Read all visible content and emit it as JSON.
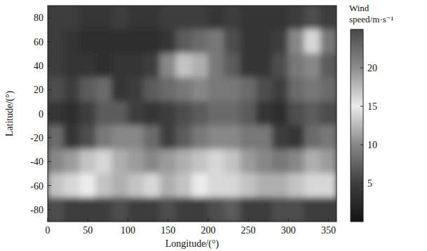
{
  "chart_data": {
    "type": "heatmap",
    "x_label": "Longitude/(°)",
    "y_label": "Latitude/(°)",
    "xlim": [
      0,
      360
    ],
    "ylim": [
      -90,
      90
    ],
    "xticks": [
      0,
      50,
      100,
      150,
      200,
      250,
      300,
      350
    ],
    "yticks": [
      -80,
      -60,
      -40,
      -20,
      0,
      20,
      40,
      60,
      80
    ],
    "x_edges": [
      0,
      20,
      40,
      60,
      80,
      100,
      120,
      140,
      160,
      180,
      200,
      220,
      240,
      260,
      280,
      300,
      320,
      340,
      360
    ],
    "y_edges": [
      90,
      70,
      50,
      30,
      10,
      -10,
      -30,
      -50,
      -70,
      -90
    ],
    "cells": [
      [
        5,
        5,
        4,
        4,
        5,
        4,
        4,
        5,
        5,
        5,
        4,
        5,
        4,
        4,
        4,
        5,
        6,
        5
      ],
      [
        5,
        4,
        3,
        3,
        3,
        3,
        3,
        4,
        7,
        8,
        9,
        6,
        4,
        4,
        5,
        10,
        14,
        9
      ],
      [
        5,
        4,
        4,
        3,
        4,
        4,
        5,
        10,
        13,
        12,
        9,
        7,
        4,
        4,
        6,
        9,
        10,
        7
      ],
      [
        6,
        5,
        7,
        8,
        4,
        5,
        7,
        8,
        9,
        10,
        9,
        9,
        8,
        6,
        5,
        8,
        9,
        8
      ],
      [
        4,
        3,
        5,
        7,
        7,
        5,
        4,
        5,
        6,
        7,
        8,
        8,
        7,
        4,
        3,
        6,
        7,
        6
      ],
      [
        8,
        4,
        6,
        9,
        10,
        10,
        8,
        5,
        7,
        9,
        10,
        10,
        9,
        9,
        5,
        4,
        8,
        9
      ],
      [
        10,
        11,
        13,
        14,
        12,
        11,
        10,
        11,
        12,
        13,
        14,
        13,
        11,
        10,
        9,
        10,
        12,
        11
      ],
      [
        13,
        14,
        15,
        13,
        12,
        13,
        14,
        12,
        13,
        15,
        16,
        14,
        13,
        12,
        12,
        13,
        14,
        14
      ],
      [
        6,
        5,
        5,
        5,
        6,
        5,
        5,
        6,
        5,
        5,
        6,
        7,
        5,
        5,
        6,
        6,
        5,
        5
      ]
    ],
    "color_label": "Wind speed/m·s⁻¹",
    "color_range": [
      0,
      25
    ],
    "color_ticks": [
      5,
      10,
      15,
      20
    ]
  }
}
